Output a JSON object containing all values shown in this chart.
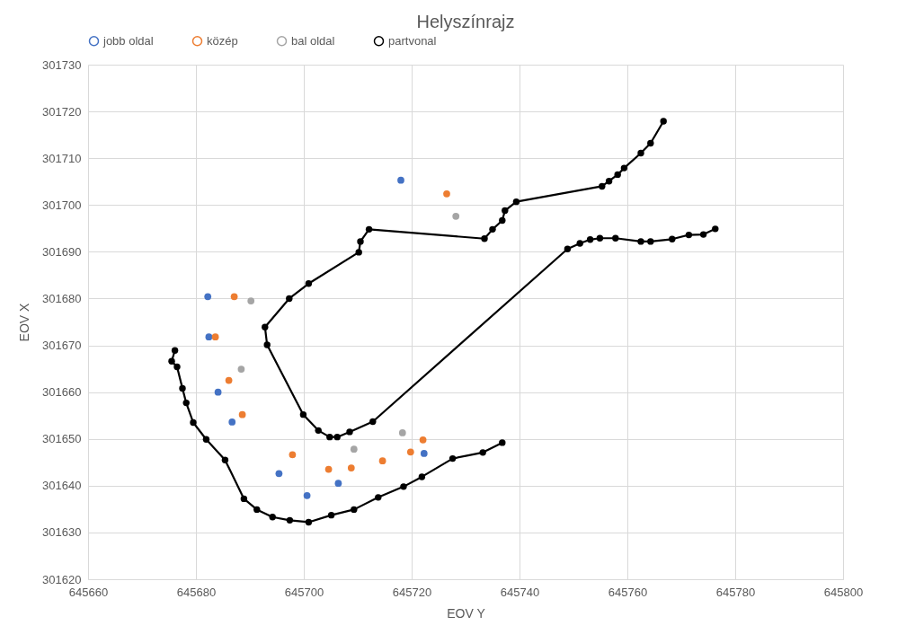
{
  "chart_data": {
    "type": "scatter",
    "title": "Helyszínrajz",
    "xlabel": "EOV Y",
    "ylabel": "EOV X",
    "xlim": [
      645660,
      645800
    ],
    "xticks": [
      645660,
      645680,
      645700,
      645720,
      645740,
      645760,
      645780,
      645800
    ],
    "ylim": [
      301620,
      301730
    ],
    "yticks": [
      301620,
      301630,
      301640,
      301650,
      301660,
      301670,
      301680,
      301690,
      301700,
      301710,
      301720,
      301730
    ],
    "grid": true,
    "legend": "top",
    "marker": "circle",
    "series": [
      {
        "name": "jobb oldal",
        "color": "#4472c4",
        "x": [
          645682.2,
          645682.4,
          645684.1,
          645686.7,
          645695.4,
          645700.6,
          645706.4,
          645718.0,
          645722.3
        ],
        "values": [
          301680.4,
          301671.8,
          301660.0,
          301653.6,
          301642.6,
          301637.9,
          301640.5,
          301705.3,
          301646.9
        ]
      },
      {
        "name": "közép",
        "color": "#ed7d31",
        "x": [
          645687.1,
          645683.6,
          645686.1,
          645688.6,
          645697.9,
          645704.6,
          645708.8,
          645714.6,
          645719.8,
          645722.1,
          645726.5
        ],
        "values": [
          301680.4,
          301671.8,
          301662.5,
          301655.2,
          301646.6,
          301643.5,
          301643.8,
          301645.3,
          301647.2,
          301649.8,
          301702.4
        ]
      },
      {
        "name": "bal oldal",
        "color": "#a5a5a5",
        "x": [
          645690.2,
          645688.4,
          645709.3,
          645718.3,
          645728.2
        ],
        "values": [
          301679.5,
          301664.9,
          301647.8,
          301651.3,
          301697.6
        ]
      },
      {
        "name": "partvonal",
        "type": "line",
        "color": "#000000",
        "marker": "circle",
        "line_style": "solid",
        "x": [
          645766.7,
          645764.3,
          645762.5,
          645759.4,
          645758.2,
          645756.6,
          645755.3,
          645739.4,
          645737.3,
          645736.8,
          645735.0,
          645733.5,
          645712.1,
          645710.5,
          645710.2,
          645700.9,
          645697.3,
          645692.8,
          645693.2,
          645699.9,
          645702.7,
          645704.8,
          645706.2,
          645708.5,
          645712.8,
          645748.9,
          645751.2,
          645753.1,
          645754.9,
          645757.8,
          645762.5,
          645764.3,
          645768.3,
          645771.4,
          645774.1,
          645776.3,
          null,
          645676.1,
          645675.5,
          645676.5,
          645677.5,
          645678.2,
          645679.5,
          645681.9,
          645685.4,
          645688.9,
          645691.3,
          645694.2,
          645697.4,
          645700.9,
          645705.1,
          645709.3,
          645713.8,
          645718.5,
          645721.9,
          645727.6,
          645733.2,
          645736.8
        ],
        "values": [
          301717.9,
          301713.2,
          301711.1,
          301707.9,
          301706.5,
          301705.1,
          301704.0,
          301700.7,
          301698.8,
          301696.7,
          301694.8,
          301692.8,
          301694.8,
          301692.2,
          301689.9,
          301683.2,
          301680.0,
          301673.9,
          301670.1,
          301655.2,
          301651.8,
          301650.4,
          301650.4,
          301651.5,
          301653.7,
          301690.6,
          301691.8,
          301692.6,
          301692.9,
          301692.9,
          301692.2,
          301692.2,
          301692.7,
          301693.6,
          301693.7,
          301694.9,
          null,
          301668.9,
          301666.6,
          301665.4,
          301660.8,
          301657.7,
          301653.5,
          301649.9,
          301645.5,
          301637.2,
          301634.9,
          301633.3,
          301632.6,
          301632.2,
          301633.7,
          301634.9,
          301637.5,
          301639.8,
          301641.9,
          301645.8,
          301647.1,
          301649.2
        ]
      }
    ]
  }
}
